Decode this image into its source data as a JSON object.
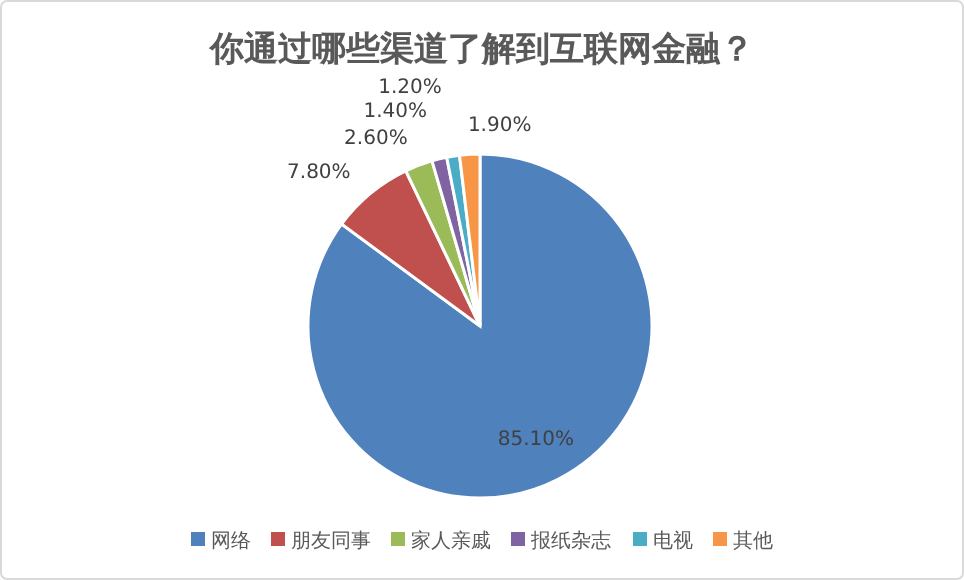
{
  "chart_data": {
    "type": "pie",
    "title": "你通过哪些渠道了解到互联网金融？",
    "categories": [
      "网络",
      "朋友同事",
      "家人亲戚",
      "报纸杂志",
      "电视",
      "其他"
    ],
    "values": [
      85.1,
      7.8,
      2.6,
      1.4,
      1.2,
      1.9
    ],
    "value_labels": [
      "85.10%",
      "7.80%",
      "2.60%",
      "1.40%",
      "1.20%",
      "1.90%"
    ],
    "colors": [
      "#4f81bd",
      "#c0504d",
      "#9bbb59",
      "#8064a2",
      "#4bacc6",
      "#f79646"
    ],
    "legend": "bottom"
  }
}
